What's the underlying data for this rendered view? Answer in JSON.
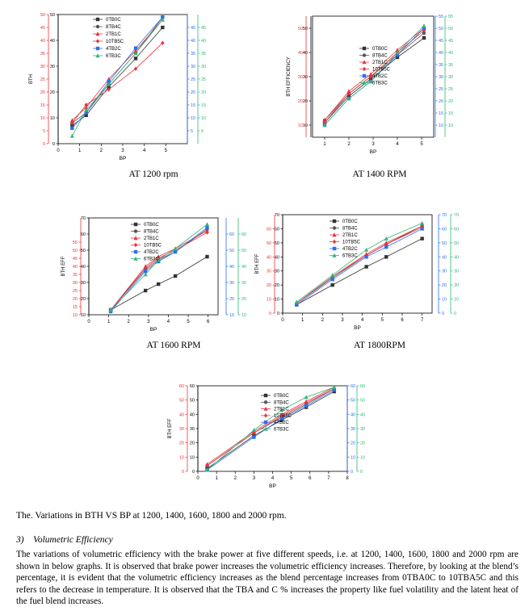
{
  "series_names": [
    "0TB0C",
    "8TB4C",
    "2TB1C",
    "10TB5C",
    "4TB2C",
    "6TB3C"
  ],
  "colors": {
    "0TB0C": "#333333",
    "8TB4C": "#555555",
    "2TB1C": "#e8343a",
    "10TB5C": "#e8343a",
    "4TB2C": "#2d6ef0",
    "6TB3C": "#2fb679",
    "axis_black": "#000000",
    "axis_red": "#e8343a",
    "axis_blue": "#2d6ef0",
    "axis_green": "#2fb679"
  },
  "captions": {
    "c1200": "AT 1200 rpm",
    "c1400": "AT  1400 RPM",
    "c1600": "AT 1600 RPM",
    "c1800": "AT 1800RPM"
  },
  "figure_caption": "The. Variations in BTH VS BP at 1200, 1400, 1600, 1800 and 2000 rpm.",
  "section": {
    "number": "3)",
    "title": "Volumetric Efficiency"
  },
  "paragraph": "The variations of volumetric efficiency with the brake power at five different speeds, i.e. at 1200, 1400, 1600, 1800 and 2000 rpm are shown in below graphs. It is observed that brake power increases the volumetric efficiency increases. Therefore, by looking at the blend’s percentage, it is evident that the volumetric efficiency increases as the blend percentage increases from 0TBA0C to 10TBA5C and this refers to the decrease in temperature. It is observed that the TBA and C % increases the property like fuel volatility and the latent heat of the fuel blend increases.",
  "chart_data": [
    {
      "type": "line",
      "id": "c1200",
      "xlabel": "BP",
      "ylabel": "BTH",
      "xlim": [
        0,
        6
      ],
      "xticks": [
        0,
        1,
        2,
        3,
        4,
        5
      ],
      "ylim": [
        0,
        50
      ],
      "left_axes": [
        {
          "color": "axis_black",
          "ticks": [
            0,
            10,
            20,
            30,
            40,
            50
          ]
        },
        {
          "color": "axis_red",
          "ticks": [
            0,
            5,
            10,
            15,
            20,
            25,
            30,
            35,
            40,
            45,
            50
          ]
        }
      ],
      "right_axes": [
        {
          "color": "axis_blue",
          "ticks": [
            5,
            10,
            15,
            20,
            25,
            30,
            35,
            40,
            45
          ]
        },
        {
          "color": "axis_green",
          "ticks": [
            5,
            10,
            15,
            20,
            25,
            30,
            35,
            40,
            45
          ]
        }
      ],
      "x": [
        0.65,
        1.3,
        2.35,
        3.6,
        4.85
      ],
      "series": [
        {
          "name": "0TB0C",
          "values": [
            7,
            11,
            22,
            33,
            45
          ]
        },
        {
          "name": "8TB4C",
          "values": [
            8,
            12,
            23,
            35,
            49
          ]
        },
        {
          "name": "2TB1C",
          "values": [
            9,
            14,
            25,
            36,
            48
          ]
        },
        {
          "name": "10TB5C",
          "values": [
            8,
            15,
            21,
            29,
            39
          ]
        },
        {
          "name": "4TB2C",
          "values": [
            6,
            12,
            24,
            37,
            49
          ]
        },
        {
          "name": "6TB3C",
          "values": [
            3,
            13,
            23,
            35,
            48
          ]
        }
      ]
    },
    {
      "type": "line",
      "id": "c1400",
      "xlabel": "BP",
      "ylabel": "BTH EFFICIENCY",
      "xlim": [
        0.5,
        5.5
      ],
      "xticks": [
        1,
        2,
        3,
        4,
        5
      ],
      "ylim": [
        5,
        55
      ],
      "left_axes": [
        {
          "color": "axis_black",
          "ticks": [
            10,
            20,
            30,
            40,
            50
          ]
        },
        {
          "color": "axis_red",
          "ticks": [
            10,
            20,
            30,
            40,
            50
          ]
        }
      ],
      "right_axes": [
        {
          "color": "axis_blue",
          "ticks": [
            10,
            15,
            20,
            25,
            30,
            35,
            40,
            45,
            50,
            55
          ]
        },
        {
          "color": "axis_green",
          "ticks": [
            10,
            15,
            20,
            25,
            30,
            35,
            40,
            45,
            50,
            55
          ]
        }
      ],
      "x": [
        1,
        2,
        2.9,
        4,
        5.1
      ],
      "series": [
        {
          "name": "0TB0C",
          "values": [
            11,
            22,
            29,
            38,
            46
          ]
        },
        {
          "name": "8TB4C",
          "values": [
            12,
            23,
            30,
            39,
            48
          ]
        },
        {
          "name": "2TB1C",
          "values": [
            12,
            24,
            31,
            41,
            50
          ]
        },
        {
          "name": "10TB5C",
          "values": [
            11,
            23,
            30,
            40,
            49
          ]
        },
        {
          "name": "4TB2C",
          "values": [
            10,
            21,
            28,
            39,
            50
          ]
        },
        {
          "name": "6TB3C",
          "values": [
            10,
            21,
            28,
            40,
            51
          ]
        }
      ]
    },
    {
      "type": "line",
      "id": "c1600",
      "xlabel": "BP",
      "ylabel": "BTH EFF",
      "xlim": [
        0,
        6.5
      ],
      "xticks": [
        0,
        1,
        2,
        3,
        4,
        5,
        6
      ],
      "ylim": [
        10,
        70
      ],
      "left_axes": [
        {
          "color": "axis_red",
          "ticks": [
            10,
            15,
            20,
            25,
            30,
            35,
            40,
            45,
            50,
            55
          ]
        },
        {
          "color": "axis_black",
          "ticks": [
            10,
            20,
            30,
            40,
            50,
            60,
            70
          ]
        }
      ],
      "right_axes": [
        {
          "color": "axis_blue",
          "ticks": [
            10,
            20,
            30,
            40,
            50,
            60
          ]
        },
        {
          "color": "axis_green",
          "ticks": [
            10,
            20,
            30,
            40,
            50,
            60
          ]
        }
      ],
      "x": [
        1.1,
        2.85,
        3.5,
        4.35,
        5.95
      ],
      "series": [
        {
          "name": "0TB0C",
          "values": [
            13,
            25,
            29,
            34,
            46
          ]
        },
        {
          "name": "8TB4C",
          "values": [
            13,
            38,
            44,
            49,
            63
          ]
        },
        {
          "name": "2TB1C",
          "values": [
            13,
            40,
            46,
            51,
            62
          ]
        },
        {
          "name": "10TB5C",
          "values": [
            13,
            39,
            45,
            50,
            61
          ]
        },
        {
          "name": "4TB2C",
          "values": [
            12,
            37,
            43,
            49,
            64
          ]
        },
        {
          "name": "6TB3C",
          "values": [
            13,
            35,
            44,
            51,
            66
          ]
        }
      ]
    },
    {
      "type": "line",
      "id": "c1800",
      "xlabel": "BP",
      "ylabel": "BTH EFF",
      "xlim": [
        0,
        7.5
      ],
      "xticks": [
        0,
        1,
        2,
        3,
        4,
        5,
        6,
        7
      ],
      "ylim": [
        0,
        70
      ],
      "left_axes": [
        {
          "color": "axis_black",
          "ticks": [
            0,
            10,
            20,
            30,
            40,
            50,
            60,
            70
          ]
        },
        {
          "color": "axis_red",
          "ticks": [
            0,
            10,
            20,
            30,
            40,
            50,
            60
          ]
        }
      ],
      "right_axes": [
        {
          "color": "axis_blue",
          "ticks": [
            0,
            10,
            20,
            30,
            40,
            50,
            60,
            70
          ]
        },
        {
          "color": "axis_green",
          "ticks": [
            0,
            10,
            20,
            30,
            40,
            50,
            60,
            70
          ]
        }
      ],
      "x": [
        0.7,
        2.5,
        4.2,
        5.2,
        7
      ],
      "series": [
        {
          "name": "0TB0C",
          "values": [
            6,
            20,
            33,
            40,
            53
          ]
        },
        {
          "name": "8TB4C",
          "values": [
            7,
            25,
            41,
            49,
            62
          ]
        },
        {
          "name": "2TB1C",
          "values": [
            7,
            26,
            42,
            50,
            62
          ]
        },
        {
          "name": "10TB5C",
          "values": [
            7,
            26,
            41,
            49,
            61
          ]
        },
        {
          "name": "4TB2C",
          "values": [
            6,
            24,
            40,
            47,
            60
          ]
        },
        {
          "name": "6TB3C",
          "values": [
            8,
            27,
            45,
            53,
            64
          ]
        }
      ]
    },
    {
      "type": "line",
      "id": "c2000",
      "xlabel": "BP",
      "ylabel": "BTH EFF",
      "xlim": [
        0,
        8
      ],
      "xticks": [
        0,
        1,
        2,
        3,
        4,
        5,
        6,
        7,
        8
      ],
      "ylim": [
        0,
        60
      ],
      "left_axes": [
        {
          "color": "axis_red",
          "ticks": [
            0,
            10,
            20,
            30,
            40,
            50,
            60
          ]
        },
        {
          "color": "axis_black",
          "ticks": [
            0,
            10,
            20,
            30,
            40,
            50,
            60
          ]
        }
      ],
      "right_axes": [
        {
          "color": "axis_blue",
          "ticks": [
            0,
            10,
            20,
            30,
            40,
            50,
            60
          ]
        },
        {
          "color": "axis_green",
          "ticks": [
            0,
            10,
            20,
            30,
            40,
            50,
            60
          ]
        }
      ],
      "x": [
        0.5,
        3,
        4.5,
        5.8,
        7.3
      ],
      "series": [
        {
          "name": "0TB0C",
          "values": [
            2,
            25,
            36,
            45,
            56
          ]
        },
        {
          "name": "8TB4C",
          "values": [
            4,
            27,
            38,
            47,
            58
          ]
        },
        {
          "name": "2TB1C",
          "values": [
            5,
            28,
            40,
            49,
            59
          ]
        },
        {
          "name": "10TB5C",
          "values": [
            4,
            27,
            39,
            48,
            58
          ]
        },
        {
          "name": "4TB2C",
          "values": [
            1,
            24,
            37,
            46,
            57
          ]
        },
        {
          "name": "6TB3C",
          "values": [
            1,
            29,
            43,
            52,
            59
          ]
        }
      ]
    }
  ]
}
